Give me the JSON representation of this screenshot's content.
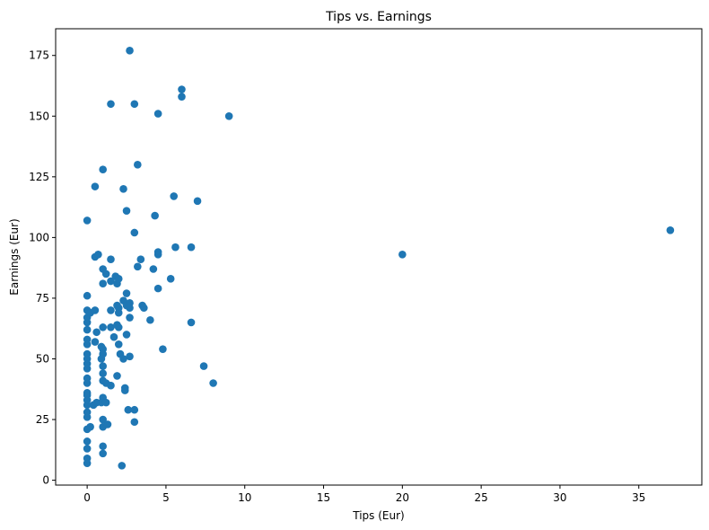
{
  "chart_data": {
    "type": "scatter",
    "title": "Tips vs. Earnings",
    "xlabel": "Tips (Eur)",
    "ylabel": "Earnings (Eur)",
    "xlim": [
      -2,
      39
    ],
    "ylim": [
      -2,
      186
    ],
    "xticks": [
      0,
      5,
      10,
      15,
      20,
      25,
      30,
      35
    ],
    "yticks": [
      0,
      25,
      50,
      75,
      100,
      125,
      150,
      175
    ],
    "grid": false,
    "legend": "none",
    "marker_color": "#1f77b4",
    "points": [
      {
        "x": 0,
        "y": 7
      },
      {
        "x": 0,
        "y": 9
      },
      {
        "x": 0,
        "y": 13
      },
      {
        "x": 0,
        "y": 16
      },
      {
        "x": 0,
        "y": 21
      },
      {
        "x": 0,
        "y": 26
      },
      {
        "x": 0,
        "y": 28
      },
      {
        "x": 0,
        "y": 31
      },
      {
        "x": 0,
        "y": 33
      },
      {
        "x": 0,
        "y": 35
      },
      {
        "x": 0,
        "y": 36
      },
      {
        "x": 0,
        "y": 40
      },
      {
        "x": 0,
        "y": 42
      },
      {
        "x": 0,
        "y": 46
      },
      {
        "x": 0,
        "y": 48
      },
      {
        "x": 0,
        "y": 50
      },
      {
        "x": 0,
        "y": 52
      },
      {
        "x": 0,
        "y": 56
      },
      {
        "x": 0,
        "y": 58
      },
      {
        "x": 0,
        "y": 62
      },
      {
        "x": 0,
        "y": 65
      },
      {
        "x": 0,
        "y": 67
      },
      {
        "x": 0,
        "y": 70
      },
      {
        "x": 0,
        "y": 76
      },
      {
        "x": 0,
        "y": 107
      },
      {
        "x": 0.2,
        "y": 69
      },
      {
        "x": 0.2,
        "y": 22
      },
      {
        "x": 0.4,
        "y": 31
      },
      {
        "x": 0.5,
        "y": 121
      },
      {
        "x": 0.5,
        "y": 92
      },
      {
        "x": 0.5,
        "y": 70
      },
      {
        "x": 0.5,
        "y": 57
      },
      {
        "x": 0.6,
        "y": 61
      },
      {
        "x": 0.6,
        "y": 32
      },
      {
        "x": 0.7,
        "y": 93
      },
      {
        "x": 0.9,
        "y": 55
      },
      {
        "x": 0.9,
        "y": 50
      },
      {
        "x": 0.9,
        "y": 32
      },
      {
        "x": 1,
        "y": 128
      },
      {
        "x": 1,
        "y": 87
      },
      {
        "x": 1,
        "y": 81
      },
      {
        "x": 1,
        "y": 63
      },
      {
        "x": 1,
        "y": 54
      },
      {
        "x": 1,
        "y": 52
      },
      {
        "x": 1,
        "y": 47
      },
      {
        "x": 1,
        "y": 44
      },
      {
        "x": 1,
        "y": 41
      },
      {
        "x": 1,
        "y": 34
      },
      {
        "x": 1,
        "y": 25
      },
      {
        "x": 1,
        "y": 22
      },
      {
        "x": 1,
        "y": 14
      },
      {
        "x": 1,
        "y": 11
      },
      {
        "x": 1.2,
        "y": 85
      },
      {
        "x": 1.2,
        "y": 40
      },
      {
        "x": 1.2,
        "y": 32
      },
      {
        "x": 1.3,
        "y": 23
      },
      {
        "x": 1.5,
        "y": 155
      },
      {
        "x": 1.5,
        "y": 91
      },
      {
        "x": 1.5,
        "y": 82
      },
      {
        "x": 1.5,
        "y": 70
      },
      {
        "x": 1.5,
        "y": 63
      },
      {
        "x": 1.5,
        "y": 39
      },
      {
        "x": 1.7,
        "y": 59
      },
      {
        "x": 1.8,
        "y": 84
      },
      {
        "x": 1.9,
        "y": 81
      },
      {
        "x": 1.9,
        "y": 72
      },
      {
        "x": 1.9,
        "y": 64
      },
      {
        "x": 1.9,
        "y": 43
      },
      {
        "x": 2,
        "y": 83
      },
      {
        "x": 2,
        "y": 71
      },
      {
        "x": 2,
        "y": 69
      },
      {
        "x": 2,
        "y": 63
      },
      {
        "x": 2,
        "y": 56
      },
      {
        "x": 2.1,
        "y": 52
      },
      {
        "x": 2.2,
        "y": 6
      },
      {
        "x": 2.3,
        "y": 120
      },
      {
        "x": 2.3,
        "y": 74
      },
      {
        "x": 2.3,
        "y": 50
      },
      {
        "x": 2.4,
        "y": 38
      },
      {
        "x": 2.4,
        "y": 37
      },
      {
        "x": 2.5,
        "y": 111
      },
      {
        "x": 2.5,
        "y": 77
      },
      {
        "x": 2.5,
        "y": 72
      },
      {
        "x": 2.5,
        "y": 60
      },
      {
        "x": 2.6,
        "y": 29
      },
      {
        "x": 2.7,
        "y": 177
      },
      {
        "x": 2.7,
        "y": 73
      },
      {
        "x": 2.7,
        "y": 71
      },
      {
        "x": 2.7,
        "y": 67
      },
      {
        "x": 2.7,
        "y": 51
      },
      {
        "x": 3,
        "y": 155
      },
      {
        "x": 3,
        "y": 102
      },
      {
        "x": 3,
        "y": 29
      },
      {
        "x": 3,
        "y": 24
      },
      {
        "x": 3.2,
        "y": 130
      },
      {
        "x": 3.2,
        "y": 88
      },
      {
        "x": 3.4,
        "y": 91
      },
      {
        "x": 3.5,
        "y": 72
      },
      {
        "x": 3.6,
        "y": 71
      },
      {
        "x": 4,
        "y": 66
      },
      {
        "x": 4.2,
        "y": 87
      },
      {
        "x": 4.3,
        "y": 109
      },
      {
        "x": 4.5,
        "y": 151
      },
      {
        "x": 4.5,
        "y": 94
      },
      {
        "x": 4.5,
        "y": 93
      },
      {
        "x": 4.5,
        "y": 79
      },
      {
        "x": 4.8,
        "y": 54
      },
      {
        "x": 5.3,
        "y": 83
      },
      {
        "x": 5.5,
        "y": 117
      },
      {
        "x": 5.6,
        "y": 96
      },
      {
        "x": 6,
        "y": 161
      },
      {
        "x": 6,
        "y": 158
      },
      {
        "x": 6.6,
        "y": 96
      },
      {
        "x": 6.6,
        "y": 65
      },
      {
        "x": 7,
        "y": 115
      },
      {
        "x": 7.4,
        "y": 47
      },
      {
        "x": 8,
        "y": 40
      },
      {
        "x": 9,
        "y": 150
      },
      {
        "x": 20,
        "y": 93
      },
      {
        "x": 37,
        "y": 103
      }
    ]
  }
}
